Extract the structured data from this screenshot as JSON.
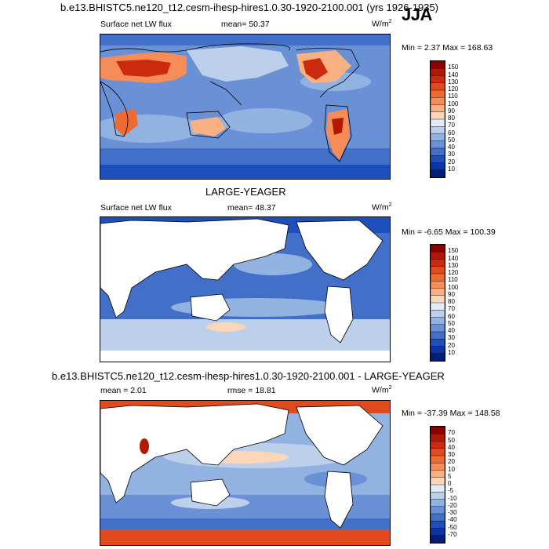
{
  "panels": [
    {
      "header": "b.e13.BHISTC5.ne120_t12.cesm-ihesp-hires1.0.30-1920-2100.001 (yrs 1926-1935)",
      "season": "JJA",
      "variable": "Surface net LW flux",
      "stat_label": "mean=",
      "stat_value": "50.37",
      "units": "W/m",
      "units_sup": "2",
      "minmax": "Min =   2.37 Max = 168.63",
      "colorbar_labels": [
        "150",
        "140",
        "130",
        "120",
        "110",
        "100",
        "90",
        "80",
        "70",
        "60",
        "50",
        "40",
        "30",
        "20",
        "10"
      ],
      "colorbar_colors": [
        "#8b0000",
        "#b11a00",
        "#cc2a0c",
        "#e04a1c",
        "#ef6a32",
        "#f68d59",
        "#f9b083",
        "#fcd6b9",
        "#e2ebf6",
        "#bcd0ec",
        "#92b2e2",
        "#6a90d6",
        "#426fc8",
        "#1d4fbd",
        "#0b35a6",
        "#001d80"
      ]
    },
    {
      "header": "LARGE-YEAGER",
      "variable": "Surface net LW flux",
      "stat_label": "mean=",
      "stat_value": "48.37",
      "units": "W/m",
      "units_sup": "2",
      "minmax": "Min =  -6.65 Max = 100.39",
      "colorbar_labels": [
        "150",
        "140",
        "130",
        "120",
        "110",
        "100",
        "90",
        "80",
        "70",
        "60",
        "50",
        "40",
        "30",
        "20",
        "10"
      ],
      "colorbar_colors": [
        "#8b0000",
        "#b11a00",
        "#cc2a0c",
        "#e04a1c",
        "#ef6a32",
        "#f68d59",
        "#f9b083",
        "#fcd6b9",
        "#e2ebf6",
        "#bcd0ec",
        "#92b2e2",
        "#6a90d6",
        "#426fc8",
        "#1d4fbd",
        "#0b35a6",
        "#001d80"
      ]
    },
    {
      "header": "b.e13.BHISTC5.ne120_t12.cesm-ihesp-hires1.0.30-1920-2100.001 - LARGE-YEAGER",
      "stat_label": "mean =",
      "stat_value": "2.01",
      "stat2_label": "rmse =",
      "stat2_value": "18.81",
      "units": "W/m",
      "units_sup": "2",
      "minmax": "Min = -37.39 Max = 148.58",
      "colorbar_labels": [
        "70",
        "50",
        "40",
        "30",
        "20",
        "10",
        "5",
        "0",
        "-5",
        "-10",
        "-20",
        "-30",
        "-40",
        "-50",
        "-70"
      ],
      "colorbar_colors": [
        "#8b0000",
        "#b11a00",
        "#cc2a0c",
        "#e04a1c",
        "#ef6a32",
        "#f68d59",
        "#f9b083",
        "#fcd6b9",
        "#e2ebf6",
        "#bcd0ec",
        "#92b2e2",
        "#6a90d6",
        "#426fc8",
        "#1d4fbd",
        "#0b35a6",
        "#001d80"
      ]
    }
  ],
  "chart_data": [
    {
      "type": "heatmap",
      "title": "b.e13.BHISTC5.ne120_t12.cesm-ihesp-hires1.0.30-1920-2100.001 (yrs 1926-1935)",
      "variable": "Surface net LW flux",
      "season": "JJA",
      "mean": 50.37,
      "min": 2.37,
      "max": 168.63,
      "units": "W/m^2",
      "contour_levels": [
        10,
        20,
        30,
        40,
        50,
        60,
        70,
        80,
        90,
        100,
        110,
        120,
        130,
        140,
        150
      ]
    },
    {
      "type": "heatmap",
      "title": "LARGE-YEAGER",
      "variable": "Surface net LW flux",
      "mean": 48.37,
      "min": -6.65,
      "max": 100.39,
      "units": "W/m^2",
      "contour_levels": [
        10,
        20,
        30,
        40,
        50,
        60,
        70,
        80,
        90,
        100,
        110,
        120,
        130,
        140,
        150
      ]
    },
    {
      "type": "heatmap",
      "title": "b.e13.BHISTC5.ne120_t12.cesm-ihesp-hires1.0.30-1920-2100.001 - LARGE-YEAGER",
      "mean": 2.01,
      "rmse": 18.81,
      "min": -37.39,
      "max": 148.58,
      "units": "W/m^2",
      "contour_levels": [
        -70,
        -50,
        -40,
        -30,
        -20,
        -10,
        -5,
        0,
        5,
        10,
        20,
        30,
        40,
        50,
        70
      ]
    }
  ]
}
